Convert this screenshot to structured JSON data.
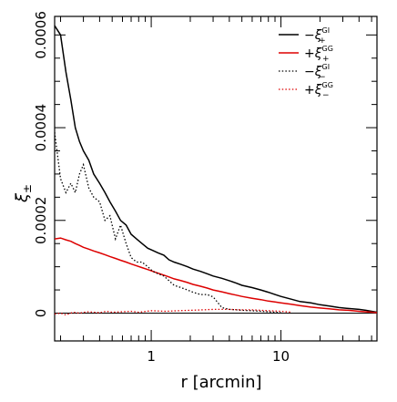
{
  "chart_data": {
    "type": "line",
    "xlabel": "r [arcmin]",
    "ylabel_main": "ξ",
    "ylabel_sub": "±",
    "xscale": "log",
    "xlim": [
      0.18,
      55
    ],
    "ylim": [
      -6e-05,
      0.00064
    ],
    "x_ticks": [
      {
        "value": 1,
        "label": "1"
      },
      {
        "value": 10,
        "label": "10"
      }
    ],
    "y_ticks": [
      {
        "value": 0,
        "label": "0"
      },
      {
        "value": 0.0002,
        "label": "0.0002"
      },
      {
        "value": 0.0004,
        "label": "0.0004"
      },
      {
        "value": 0.0006,
        "label": "0.0006"
      }
    ],
    "zero_line": true,
    "legend_position": "top-right",
    "series": [
      {
        "name": "−ξ+GI",
        "sign": "−",
        "sup": "GI",
        "sub": "+",
        "color": "#000000",
        "dash": "solid",
        "x": [
          0.18,
          0.2,
          0.22,
          0.24,
          0.26,
          0.28,
          0.3,
          0.33,
          0.36,
          0.4,
          0.44,
          0.48,
          0.53,
          0.58,
          0.64,
          0.7,
          0.77,
          0.85,
          0.94,
          1.03,
          1.13,
          1.25,
          1.37,
          1.5,
          1.7,
          1.9,
          2.1,
          2.4,
          2.7,
          3.0,
          3.5,
          4.0,
          4.5,
          5.0,
          6.0,
          7.0,
          8.0,
          9.0,
          10,
          12,
          14,
          17,
          20,
          24,
          28,
          33,
          40,
          45,
          50,
          55
        ],
        "y": [
          0.00062,
          0.0006,
          0.00052,
          0.00046,
          0.0004,
          0.00037,
          0.00035,
          0.00033,
          0.0003,
          0.00028,
          0.00026,
          0.00024,
          0.00022,
          0.0002,
          0.00019,
          0.00017,
          0.00016,
          0.00015,
          0.00014,
          0.000135,
          0.00013,
          0.000125,
          0.000115,
          0.00011,
          0.000105,
          0.0001,
          9.5e-05,
          9e-05,
          8.5e-05,
          8e-05,
          7.5e-05,
          7e-05,
          6.5e-05,
          6e-05,
          5.5e-05,
          5e-05,
          4.5e-05,
          4e-05,
          3.6e-05,
          3e-05,
          2.5e-05,
          2.2e-05,
          1.8e-05,
          1.5e-05,
          1.2e-05,
          1e-05,
          8e-06,
          6e-06,
          4e-06,
          2e-06
        ]
      },
      {
        "name": "+ξ+GG",
        "sign": "+",
        "sup": "GG",
        "sub": "+",
        "color": "#dd0000",
        "dash": "solid",
        "x": [
          0.18,
          0.2,
          0.22,
          0.24,
          0.26,
          0.28,
          0.3,
          0.33,
          0.36,
          0.4,
          0.44,
          0.48,
          0.53,
          0.58,
          0.64,
          0.7,
          0.77,
          0.85,
          0.94,
          1.03,
          1.13,
          1.25,
          1.37,
          1.5,
          1.7,
          1.9,
          2.1,
          2.4,
          2.7,
          3.0,
          3.5,
          4.0,
          4.5,
          5.0,
          6.0,
          7.0,
          8.0,
          9.0,
          10,
          12,
          14,
          17,
          20,
          24,
          28,
          33,
          40,
          45,
          50,
          55
        ],
        "y": [
          0.00016,
          0.000162,
          0.000158,
          0.000155,
          0.00015,
          0.000146,
          0.000142,
          0.000138,
          0.000134,
          0.00013,
          0.000126,
          0.000122,
          0.000118,
          0.000114,
          0.00011,
          0.000106,
          0.000102,
          9.8e-05,
          9.4e-05,
          9e-05,
          8.6e-05,
          8.2e-05,
          7.8e-05,
          7.4e-05,
          7e-05,
          6.6e-05,
          6.2e-05,
          5.8e-05,
          5.4e-05,
          5e-05,
          4.6e-05,
          4.2e-05,
          3.9e-05,
          3.6e-05,
          3.2e-05,
          2.9e-05,
          2.6e-05,
          2.4e-05,
          2.2e-05,
          1.9e-05,
          1.6e-05,
          1.3e-05,
          1.1e-05,
          9e-06,
          7e-06,
          6e-06,
          4e-06,
          3e-06,
          2e-06,
          1e-06
        ]
      },
      {
        "name": "−ξ−GI",
        "sign": "−",
        "sup": "GI",
        "sub": "−",
        "color": "#000000",
        "dash": "dotted",
        "x": [
          0.18,
          0.2,
          0.22,
          0.24,
          0.26,
          0.28,
          0.3,
          0.33,
          0.36,
          0.4,
          0.44,
          0.48,
          0.53,
          0.58,
          0.64,
          0.7,
          0.77,
          0.85,
          0.94,
          1.03,
          1.13,
          1.25,
          1.37,
          1.5,
          1.7,
          1.9,
          2.1,
          2.4,
          2.7,
          3.0,
          3.5,
          4.0,
          4.5,
          5.0,
          6.0,
          7.0,
          8.0,
          9.0,
          10
        ],
        "y": [
          0.00039,
          0.00029,
          0.00026,
          0.00028,
          0.00026,
          0.0003,
          0.00032,
          0.00027,
          0.00025,
          0.00024,
          0.0002,
          0.00021,
          0.00016,
          0.00019,
          0.00015,
          0.00012,
          0.00011,
          0.00011,
          0.0001,
          9e-05,
          8.5e-05,
          8e-05,
          7e-05,
          6e-05,
          5.5e-05,
          5e-05,
          4.5e-05,
          4e-05,
          4e-05,
          3.5e-05,
          1.2e-05,
          8e-06,
          7e-06,
          6e-06,
          5e-06,
          4e-06,
          3e-06,
          2e-06,
          1e-06
        ]
      },
      {
        "name": "+ξ−GG",
        "sign": "+",
        "sup": "GG",
        "sub": "−",
        "color": "#dd0000",
        "dash": "dotted",
        "x": [
          0.18,
          0.2,
          0.22,
          0.25,
          0.28,
          0.32,
          0.36,
          0.4,
          0.45,
          0.5,
          0.6,
          0.7,
          0.8,
          1.0,
          1.3,
          1.6,
          2.0,
          2.5,
          3.0,
          4.0,
          5.0,
          6.0,
          7.0,
          8.0,
          10,
          12
        ],
        "y": [
          -2e-06,
          0.0,
          -4e-06,
          2e-06,
          0.0,
          3e-06,
          2e-06,
          1e-06,
          4e-06,
          2e-06,
          3e-06,
          4e-06,
          2e-06,
          5e-06,
          4e-06,
          5e-06,
          6e-06,
          7e-06,
          8e-06,
          8e-06,
          7e-06,
          7e-06,
          6e-06,
          5e-06,
          4e-06,
          2e-06
        ]
      }
    ]
  }
}
